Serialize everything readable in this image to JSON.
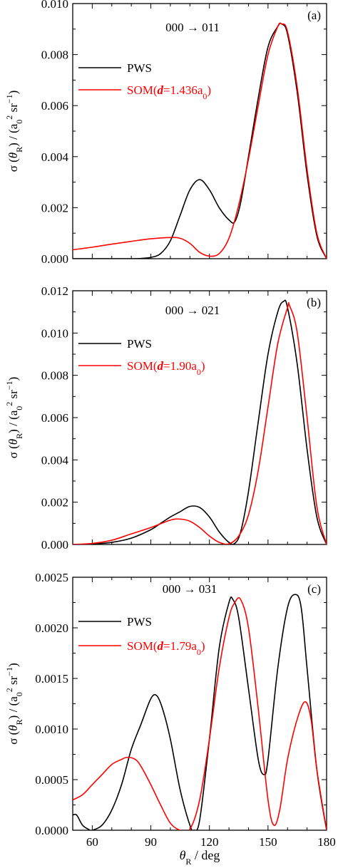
{
  "figure": {
    "x_axis_label": "θR / deg",
    "x_tick_labels": [
      "60",
      "90",
      "120",
      "150",
      "180"
    ]
  },
  "chart_data": [
    {
      "panel": "(a)",
      "type": "line",
      "annotation": "000 → 011",
      "ylabel": "σ (θR) / (a0² sr⁻¹)",
      "xlim": [
        50,
        180
      ],
      "ylim": [
        0,
        0.01
      ],
      "yticks": [
        "0.000",
        "0.002",
        "0.004",
        "0.006",
        "0.008",
        "0.010"
      ],
      "yticks_values": [
        0,
        0.002,
        0.004,
        0.006,
        0.008,
        0.01
      ],
      "legend": [
        "PWS",
        "SOM(d=1.436a0)"
      ],
      "series": [
        {
          "name": "PWS",
          "color": "#000000",
          "x": [
            50,
            60,
            70,
            80,
            85,
            90,
            95,
            100,
            105,
            110,
            115,
            120,
            125,
            130,
            133,
            136,
            140,
            145,
            150,
            155,
            157,
            160,
            165,
            170,
            175,
            180
          ],
          "y": [
            0,
            0,
            0,
            0,
            1e-05,
            5e-05,
            0.0002,
            0.0007,
            0.0017,
            0.0027,
            0.0031,
            0.0027,
            0.002,
            0.00152,
            0.00145,
            0.0022,
            0.004,
            0.0063,
            0.0083,
            0.0091,
            0.0092,
            0.0088,
            0.0065,
            0.0033,
            0.0009,
            0
          ]
        },
        {
          "name": "SOM(d=1.436a0)",
          "color": "#ff0000",
          "x": [
            50,
            60,
            70,
            80,
            90,
            100,
            105,
            110,
            115,
            120,
            125,
            130,
            135,
            140,
            145,
            150,
            155,
            157,
            160,
            165,
            170,
            175,
            180
          ],
          "y": [
            0.00035,
            0.00045,
            0.00057,
            0.00068,
            0.00078,
            0.00083,
            0.0008,
            0.0006,
            0.00025,
            0.0001,
            0.0002,
            0.0008,
            0.0021,
            0.0039,
            0.006,
            0.008,
            0.0091,
            0.0092,
            0.0089,
            0.0067,
            0.0035,
            0.001,
            0
          ]
        }
      ]
    },
    {
      "panel": "(b)",
      "type": "line",
      "annotation": "000 → 021",
      "ylabel": "σ (θR) / (a0² sr⁻¹)",
      "xlim": [
        50,
        180
      ],
      "ylim": [
        0,
        0.012
      ],
      "yticks": [
        "0.000",
        "0.002",
        "0.004",
        "0.006",
        "0.008",
        "0.010",
        "0.012"
      ],
      "yticks_values": [
        0,
        0.002,
        0.004,
        0.006,
        0.008,
        0.01,
        0.012
      ],
      "legend": [
        "PWS",
        "SOM(d=1.90a0)"
      ],
      "series": [
        {
          "name": "PWS",
          "color": "#000000",
          "x": [
            50,
            60,
            70,
            80,
            90,
            95,
            100,
            105,
            110,
            115,
            120,
            125,
            130,
            133,
            136,
            140,
            145,
            150,
            155,
            158,
            160,
            165,
            170,
            175,
            180
          ],
          "y": [
            0,
            2e-05,
            0.0001,
            0.0003,
            0.0007,
            0.001,
            0.0013,
            0.00155,
            0.0018,
            0.00175,
            0.0013,
            0.0006,
            0.0001,
            5e-05,
            0.0006,
            0.0025,
            0.0058,
            0.009,
            0.011,
            0.0115,
            0.0112,
            0.0085,
            0.0045,
            0.0013,
            0
          ]
        },
        {
          "name": "SOM(d=1.90a0)",
          "color": "#ff0000",
          "x": [
            50,
            60,
            70,
            80,
            90,
            100,
            105,
            110,
            115,
            120,
            125,
            130,
            135,
            140,
            145,
            150,
            155,
            160,
            161,
            165,
            170,
            175,
            180
          ],
          "y": [
            0,
            5e-05,
            0.0002,
            0.0005,
            0.0008,
            0.00115,
            0.0012,
            0.0011,
            0.0008,
            0.0004,
            0.0001,
            3e-05,
            0.0004,
            0.0014,
            0.0035,
            0.0065,
            0.0095,
            0.0112,
            0.0113,
            0.01,
            0.006,
            0.0018,
            0
          ]
        }
      ]
    },
    {
      "panel": "(c)",
      "type": "line",
      "annotation": "000 → 031",
      "ylabel": "σ (θR) / (a0² sr⁻¹)",
      "xlabel": "θR / deg",
      "xlim": [
        50,
        180
      ],
      "ylim": [
        0,
        0.0025
      ],
      "xticks": [
        60,
        90,
        120,
        150,
        180
      ],
      "yticks": [
        "0.0000",
        "0.0005",
        "0.0010",
        "0.0015",
        "0.0020",
        "0.0025"
      ],
      "yticks_values": [
        0,
        0.0005,
        0.001,
        0.0015,
        0.002,
        0.0025
      ],
      "legend": [
        "PWS",
        "SOM(d=1.79a0)"
      ],
      "series": [
        {
          "name": "PWS",
          "color": "#000000",
          "x": [
            50,
            52,
            55,
            58,
            60,
            65,
            70,
            75,
            80,
            85,
            90,
            93,
            96,
            100,
            105,
            110,
            112,
            115,
            120,
            125,
            130,
            132,
            135,
            140,
            145,
            148,
            150,
            155,
            160,
            164,
            167,
            170,
            175,
            180
          ],
          "y": [
            0.00015,
            0.00015,
            5e-05,
            1e-05,
            0,
            5e-05,
            0.0002,
            0.00045,
            0.0008,
            0.00105,
            0.0013,
            0.00133,
            0.0012,
            0.0009,
            0.0004,
            5e-05,
            0,
            0.0001,
            0.0009,
            0.0018,
            0.00225,
            0.00228,
            0.0021,
            0.0014,
            0.0007,
            0.00055,
            0.0007,
            0.0016,
            0.0022,
            0.00233,
            0.0022,
            0.0016,
            0.0006,
            0
          ]
        },
        {
          "name": "SOM(d=1.79a0)",
          "color": "#ff0000",
          "x": [
            50,
            55,
            60,
            65,
            70,
            75,
            78,
            82,
            85,
            90,
            95,
            100,
            105,
            110,
            115,
            120,
            125,
            130,
            133,
            136,
            140,
            145,
            150,
            153,
            156,
            160,
            165,
            169,
            172,
            175,
            180
          ],
          "y": [
            0.0003,
            0.00035,
            0.00045,
            0.00055,
            0.00065,
            0.0007,
            0.00072,
            0.0007,
            0.00063,
            0.00045,
            0.00025,
            7e-05,
            0,
            1e-05,
            0.0003,
            0.0009,
            0.0016,
            0.0021,
            0.00225,
            0.00228,
            0.002,
            0.0012,
            0.0003,
            5e-05,
            0.0002,
            0.0007,
            0.0011,
            0.00127,
            0.0011,
            0.0006,
            0
          ]
        }
      ]
    }
  ]
}
